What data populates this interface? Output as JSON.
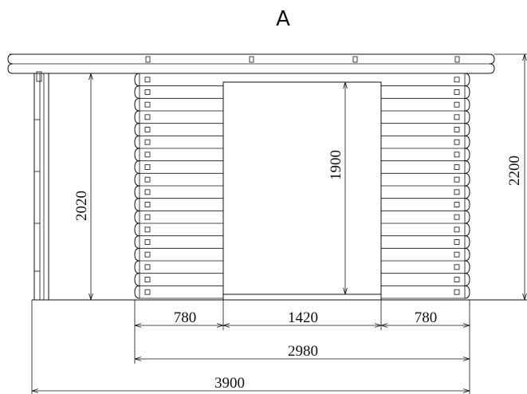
{
  "view_label": "A",
  "dimensions": {
    "overall_height": "2200",
    "door_height": "1900",
    "side_height": "2020",
    "left_wall_width": "780",
    "door_width": "1420",
    "right_wall_width": "780",
    "front_width": "2980",
    "total_width": "3900"
  },
  "log_rows": 18,
  "colors": {
    "line": "#111111",
    "background": "#ffffff"
  }
}
